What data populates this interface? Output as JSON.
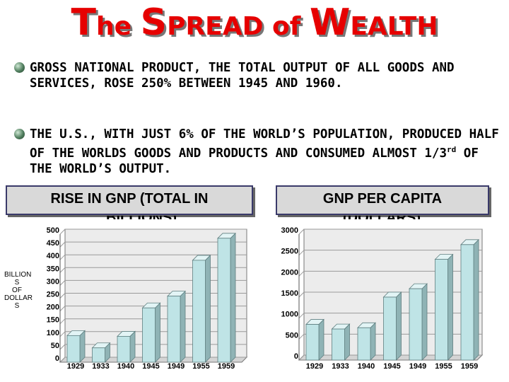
{
  "title": {
    "part1_big": "T",
    "part1_small": "he ",
    "part2_big": "S",
    "part2_small": "PREAD of ",
    "part3_big": "W",
    "part3_small": "EALTH"
  },
  "bullets": [
    {
      "text": "GROSS NATIONAL PRODUCT, THE TOTAL OUTPUT OF ALL GOODS AND SERVICES, ROSE 250% BETWEEN 1945 AND 1960."
    },
    {
      "text_before": "THE U.S., WITH JUST 6% OF THE WORLD’S POPULATION, PRODUCED HALF OF THE WORLDS GOODS AND PRODUCTS AND CONSUMED ALMOST 1/3",
      "sup": "rd",
      "text_after": " OF THE WORLD’S OUTPUT."
    }
  ],
  "colors": {
    "title": "#e60000",
    "bar_front": "#bfe4e6",
    "bar_side": "#8fb3b5",
    "chart_wall": "#ececec",
    "grid": "#9a9a9a"
  },
  "chart_data": [
    {
      "type": "bar",
      "title": "RISE IN GNP (TOTAL IN BILLIONS)",
      "title_line1": "RISE IN GNP (TOTAL IN",
      "title_line2": "BILLIONS)",
      "ylabel": "BILLION S OF DOLLAR S",
      "ylabel_lines": "BILLION\nS\nOF\nDOLLAR\nS",
      "categories": [
        "1929",
        "1933",
        "1940",
        "1945",
        "1949",
        "1955",
        "1959"
      ],
      "values": [
        104,
        56,
        101,
        212,
        258,
        398,
        484
      ],
      "ylim": [
        0,
        500
      ],
      "yticks": [
        0,
        50,
        100,
        150,
        200,
        250,
        300,
        350,
        400,
        450,
        500
      ],
      "grid": true,
      "legend": "none"
    },
    {
      "type": "bar",
      "title": "GNP PER CAPITA (DOLLARS)",
      "title_line1": "GNP PER CAPITA",
      "title_line2": "(DOLLARS)",
      "ylabel": "",
      "categories": [
        "1929",
        "1933",
        "1940",
        "1945",
        "1949",
        "1955",
        "1959"
      ],
      "values": [
        850,
        740,
        770,
        1500,
        1700,
        2400,
        2750
      ],
      "ylim": [
        0,
        3000
      ],
      "yticks": [
        0,
        500,
        1000,
        1500,
        2000,
        2500,
        3000
      ],
      "grid": true,
      "legend": "none"
    }
  ]
}
